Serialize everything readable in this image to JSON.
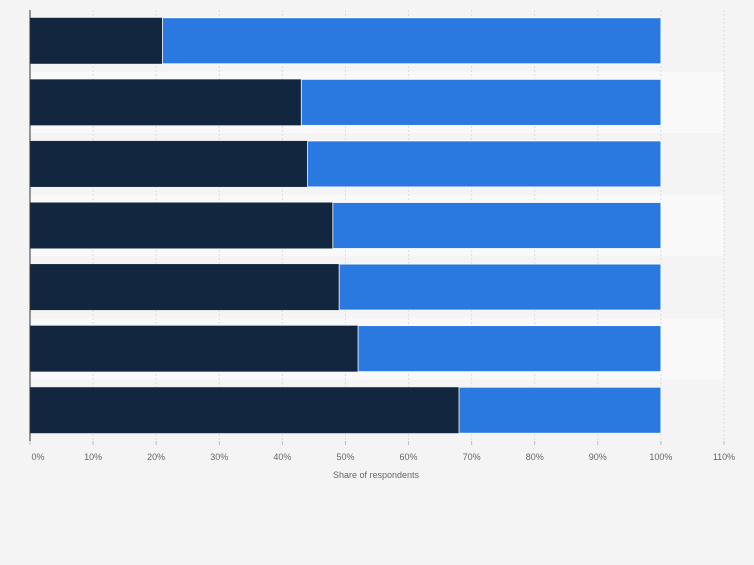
{
  "chart_data": {
    "type": "bar",
    "orientation": "horizontal",
    "stacked": true,
    "categories": [
      "",
      "",
      "",
      "",
      "",
      "",
      ""
    ],
    "series": [
      {
        "values": [
          21,
          43,
          44,
          48,
          49,
          52,
          68
        ],
        "color": "#12263f"
      },
      {
        "values": [
          79,
          57,
          56,
          52,
          51,
          48,
          32
        ],
        "color": "#2979e0"
      }
    ],
    "xlabel": "Share of respondents",
    "xlim": [
      0,
      110
    ],
    "x_ticks": [
      0,
      10,
      20,
      30,
      40,
      50,
      60,
      70,
      80,
      90,
      100,
      110
    ],
    "x_tick_labels": [
      "0%",
      "10%",
      "20%",
      "30%",
      "40%",
      "50%",
      "60%",
      "70%",
      "80%",
      "90%",
      "100%",
      "110%"
    ],
    "grid": true,
    "legend": "none"
  }
}
